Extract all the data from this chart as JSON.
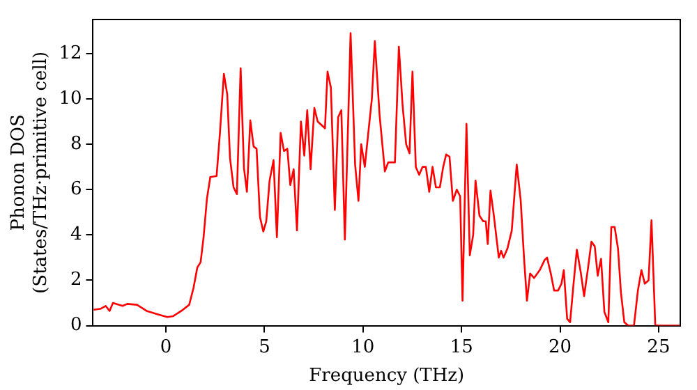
{
  "chart_data": {
    "type": "line",
    "xlabel": "Frequency (THz)",
    "ylabel": "Phonon DOS\n(States/THz·primitive cell)",
    "xlim": [
      -3.7,
      26.1
    ],
    "ylim": [
      0,
      13.5
    ],
    "xticks": [
      0,
      5,
      10,
      15,
      20,
      25
    ],
    "yticks": [
      0,
      2,
      4,
      6,
      8,
      10,
      12
    ],
    "grid": false,
    "legend": false,
    "marker": "none",
    "line_style": "solid",
    "series": [
      {
        "color": "#ff0000",
        "x": [
          -3.67,
          -3.3,
          -3.06,
          -2.86,
          -2.69,
          -2.2,
          -1.96,
          -1.47,
          -0.98,
          -0.37,
          0.07,
          0.37,
          0.86,
          1.18,
          1.4,
          1.59,
          1.76,
          1.91,
          2.08,
          2.25,
          2.57,
          2.74,
          2.94,
          3.11,
          3.25,
          3.43,
          3.6,
          3.79,
          3.96,
          4.11,
          4.28,
          4.45,
          4.6,
          4.77,
          4.94,
          5.09,
          5.26,
          5.46,
          5.63,
          5.82,
          5.99,
          6.16,
          6.31,
          6.48,
          6.65,
          6.85,
          7.02,
          7.17,
          7.34,
          7.53,
          7.7,
          7.95,
          8.07,
          8.2,
          8.37,
          8.57,
          8.74,
          8.9,
          9.08,
          9.37,
          9.6,
          9.77,
          9.91,
          10.09,
          10.28,
          10.45,
          10.6,
          10.84,
          11.11,
          11.28,
          11.62,
          11.82,
          12.01,
          12.19,
          12.36,
          12.51,
          12.68,
          12.85,
          13.02,
          13.19,
          13.36,
          13.53,
          13.7,
          13.9,
          14.07,
          14.22,
          14.39,
          14.56,
          14.76,
          14.93,
          15.05,
          15.25,
          15.42,
          15.59,
          15.71,
          15.91,
          16.1,
          16.23,
          16.33,
          16.47,
          16.64,
          16.89,
          17.01,
          17.13,
          17.33,
          17.55,
          17.8,
          18.0,
          18.17,
          18.32,
          18.48,
          18.68,
          18.97,
          19.22,
          19.34,
          19.53,
          19.7,
          19.9,
          20.07,
          20.19,
          20.36,
          20.51,
          20.68,
          20.85,
          21.05,
          21.22,
          21.42,
          21.59,
          21.76,
          21.91,
          22.08,
          22.25,
          22.45,
          22.6,
          22.77,
          22.94,
          23.09,
          23.26,
          23.46,
          23.75,
          23.95,
          24.13,
          24.3,
          24.49,
          24.64,
          24.83,
          24.98,
          26.1
        ],
        "values": [
          0.7,
          0.75,
          0.87,
          0.65,
          1.0,
          0.87,
          0.96,
          0.92,
          0.65,
          0.49,
          0.38,
          0.42,
          0.7,
          0.92,
          1.67,
          2.56,
          2.8,
          3.9,
          5.6,
          6.55,
          6.6,
          8.5,
          11.1,
          10.2,
          7.4,
          6.1,
          5.8,
          11.35,
          6.95,
          5.9,
          9.05,
          7.9,
          7.8,
          4.8,
          4.15,
          4.6,
          6.4,
          7.3,
          3.9,
          8.5,
          7.7,
          7.8,
          6.2,
          6.9,
          4.2,
          9.0,
          7.5,
          9.5,
          6.9,
          9.6,
          9.0,
          8.8,
          8.7,
          11.2,
          10.5,
          5.1,
          9.2,
          9.5,
          3.8,
          12.9,
          7.1,
          5.5,
          8.0,
          7.0,
          8.6,
          10.0,
          12.55,
          9.3,
          6.8,
          7.2,
          7.2,
          12.3,
          9.7,
          8.0,
          7.6,
          11.2,
          7.0,
          6.65,
          7.0,
          7.0,
          5.9,
          7.0,
          6.1,
          6.1,
          7.0,
          7.55,
          7.45,
          5.5,
          6.0,
          5.7,
          1.1,
          8.9,
          3.1,
          4.0,
          6.4,
          4.85,
          4.6,
          4.6,
          3.6,
          5.95,
          4.85,
          3.0,
          3.3,
          3.0,
          3.4,
          4.2,
          7.1,
          5.55,
          3.0,
          1.1,
          2.3,
          2.1,
          2.45,
          2.9,
          3.0,
          2.3,
          1.55,
          1.55,
          1.85,
          2.45,
          0.3,
          0.15,
          1.8,
          3.35,
          2.35,
          1.3,
          2.55,
          3.7,
          3.5,
          2.2,
          2.95,
          0.6,
          0.15,
          4.35,
          4.35,
          3.4,
          1.45,
          0.15,
          0,
          0,
          1.55,
          2.45,
          1.85,
          2.0,
          4.65,
          0.05,
          0,
          0
        ]
      }
    ]
  }
}
